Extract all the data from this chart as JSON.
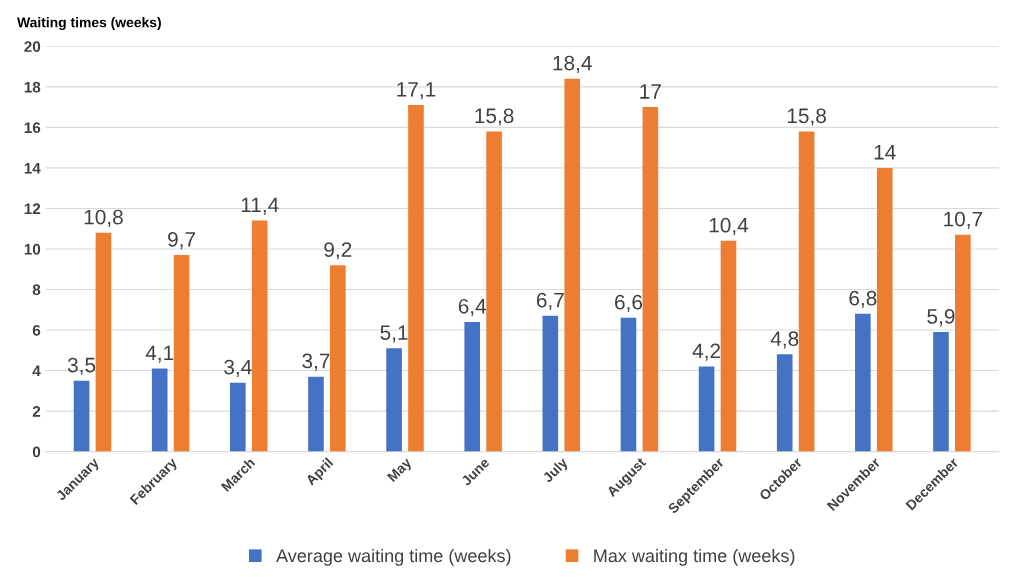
{
  "chart_data": {
    "type": "bar",
    "ylabel": "Waiting times (weeks)",
    "categories": [
      "January",
      "February",
      "March",
      "April",
      "May",
      "June",
      "July",
      "August",
      "September",
      "October",
      "November",
      "December"
    ],
    "series": [
      {
        "name": "Average waiting time (weeks)",
        "color": "#4472c4",
        "values": [
          3.5,
          4.1,
          3.4,
          3.7,
          5.1,
          6.4,
          6.7,
          6.6,
          4.2,
          4.8,
          6.8,
          5.9
        ],
        "value_labels": [
          "3,5",
          "4,1",
          "3,4",
          "3,7",
          "5,1",
          "6,4",
          "6,7",
          "6,6",
          "4,2",
          "4,8",
          "6,8",
          "5,9"
        ]
      },
      {
        "name": "Max waiting time (weeks)",
        "color": "#ed7d31",
        "values": [
          10.8,
          9.7,
          11.4,
          9.2,
          17.1,
          15.8,
          18.4,
          17,
          10.4,
          15.8,
          14,
          10.7
        ],
        "value_labels": [
          "10,8",
          "9,7",
          "11,4",
          "9,2",
          "17,1",
          "15,8",
          "18,4",
          "17",
          "10,4",
          "15,8",
          "14",
          "10,7"
        ]
      }
    ],
    "ylim": [
      0,
      20
    ],
    "yticks": [
      0,
      2,
      4,
      6,
      8,
      10,
      12,
      14,
      16,
      18,
      20
    ],
    "grid": "y",
    "legend": "bottom"
  }
}
